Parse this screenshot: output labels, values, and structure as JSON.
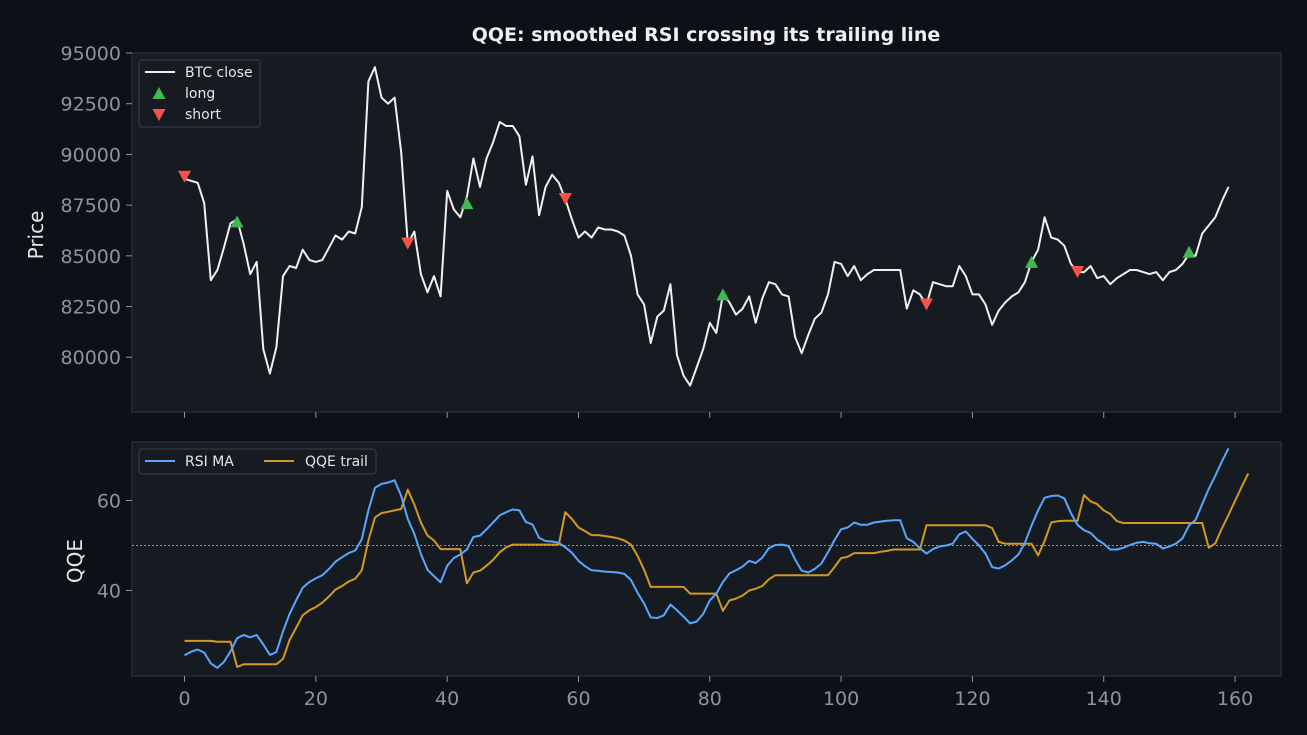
{
  "chart_data": [
    {
      "type": "line",
      "title": "QQE: smoothed RSI crossing its trailing line",
      "xlabel": "",
      "ylabel": "Price",
      "xlim": [
        -8,
        167
      ],
      "ylim": [
        77300,
        95000
      ],
      "yticks": [
        80000,
        82500,
        85000,
        87500,
        90000,
        92500,
        95000
      ],
      "xticks": [
        0,
        20,
        40,
        60,
        80,
        100,
        120,
        140,
        160
      ],
      "legend_position": "top-left",
      "colors": {
        "close": "#f0f0f0",
        "long": "#3fb950",
        "short": "#f85149"
      },
      "series": [
        {
          "name": "BTC close",
          "x_start": 0,
          "values": [
            88800,
            88700,
            88600,
            87600,
            83800,
            84300,
            85400,
            86600,
            86800,
            85600,
            84100,
            84700,
            80400,
            79200,
            80500,
            84000,
            84500,
            84400,
            85300,
            84800,
            84700,
            84800,
            85400,
            86000,
            85800,
            86200,
            86100,
            87400,
            93600,
            94300,
            92800,
            92500,
            92800,
            90100,
            85600,
            86200,
            84100,
            83200,
            84000,
            83000,
            88200,
            87300,
            86900,
            87900,
            89800,
            88400,
            89800,
            90600,
            91600,
            91400,
            91400,
            90900,
            88500,
            89900,
            87000,
            88400,
            89000,
            88600,
            87800,
            86800,
            85900,
            86200,
            85900,
            86400,
            86300,
            86300,
            86200,
            86000,
            85000,
            83100,
            82600,
            80700,
            82000,
            82300,
            83600,
            80100,
            79100,
            78600,
            79500,
            80400,
            81700,
            81200,
            83100,
            82700,
            82100,
            82400,
            83000,
            81700,
            82900,
            83700,
            83600,
            83100,
            83000,
            81000,
            80200,
            81100,
            81900,
            82200,
            83100,
            84700,
            84600,
            84000,
            84500,
            83800,
            84100,
            84300,
            84300,
            84300,
            84300,
            84300,
            82400,
            83300,
            83100,
            82600,
            83700,
            83600,
            83500,
            83500,
            84500,
            84000,
            83100,
            83100,
            82600,
            81600,
            82300,
            82700,
            83000,
            83200,
            83700,
            84700,
            85300,
            86900,
            85900,
            85800,
            85500,
            84600,
            84200,
            84200,
            84500,
            83900,
            84000,
            83600,
            83900,
            84100,
            84300,
            84300,
            84200,
            84100,
            84200,
            83800,
            84200,
            84300,
            84600,
            85100,
            85000,
            86100,
            86500,
            86900,
            87700,
            88400
          ]
        },
        {
          "name": "long",
          "marker": "triangle-up",
          "points": [
            [
              8,
              86700
            ],
            [
              43,
              87600
            ],
            [
              82,
              83100
            ],
            [
              129,
              84700
            ],
            [
              153,
              85200
            ]
          ]
        },
        {
          "name": "short",
          "marker": "triangle-down",
          "points": [
            [
              0,
              88900
            ],
            [
              34,
              85600
            ],
            [
              58,
              87800
            ],
            [
              113,
              82600
            ],
            [
              136,
              84200
            ]
          ]
        }
      ]
    },
    {
      "type": "line",
      "title": "",
      "xlabel": "",
      "ylabel": "QQE",
      "xlim": [
        -8,
        167
      ],
      "ylim": [
        21,
        73
      ],
      "yticks": [
        40,
        60
      ],
      "xticks": [
        0,
        20,
        40,
        60,
        80,
        100,
        120,
        140,
        160
      ],
      "reference_line": 50,
      "legend_position": "top-left",
      "colors": {
        "rsi": "#58a6ff",
        "trail": "#d29922",
        "ref": "#8b949e"
      },
      "series": [
        {
          "name": "RSI MA",
          "x_start": 0,
          "values": [
            25.6,
            26.4,
            26.9,
            26.2,
            23.8,
            22.8,
            24.1,
            26.5,
            29.4,
            30.1,
            29.6,
            30.1,
            28.0,
            25.7,
            26.3,
            30.9,
            34.8,
            37.8,
            40.6,
            41.9,
            42.7,
            43.4,
            44.8,
            46.4,
            47.4,
            48.3,
            48.9,
            51.4,
            57.8,
            62.8,
            63.7,
            64.0,
            64.5,
            61.0,
            55.9,
            52.6,
            48.1,
            44.6,
            43.2,
            41.8,
            45.5,
            47.2,
            48.0,
            49.1,
            51.9,
            52.2,
            53.6,
            55.1,
            56.7,
            57.4,
            58.0,
            57.8,
            55.2,
            54.7,
            51.7,
            51.0,
            50.9,
            50.6,
            49.6,
            48.4,
            46.6,
            45.4,
            44.5,
            44.4,
            44.2,
            44.1,
            44.0,
            43.7,
            42.3,
            39.5,
            37.1,
            34.0,
            33.9,
            34.5,
            36.9,
            35.6,
            34.2,
            32.7,
            33.1,
            34.8,
            37.8,
            39.3,
            41.9,
            43.8,
            44.5,
            45.3,
            46.6,
            46.1,
            47.3,
            49.4,
            50.1,
            50.2,
            49.9,
            46.9,
            44.4,
            44.0,
            44.8,
            46.0,
            48.5,
            51.2,
            53.6,
            54.0,
            55.1,
            54.6,
            54.6,
            55.1,
            55.3,
            55.5,
            55.6,
            55.6,
            51.6,
            50.8,
            49.4,
            48.2,
            49.2,
            49.8,
            50.0,
            50.4,
            52.5,
            53.1,
            51.5,
            50.0,
            48.2,
            45.2,
            44.9,
            45.6,
            46.7,
            48.0,
            50.6,
            54.4,
            57.8,
            60.6,
            61.0,
            61.1,
            60.5,
            57.2,
            54.6,
            53.4,
            52.8,
            51.3,
            50.4,
            49.1,
            49.1,
            49.5,
            50.1,
            50.6,
            50.8,
            50.5,
            50.4,
            49.3,
            49.8,
            50.4,
            51.6,
            54.5,
            55.7,
            59.2,
            62.6,
            65.5,
            68.7,
            71.6
          ]
        },
        {
          "name": "QQE trail",
          "x_start": 0,
          "values": [
            28.8,
            28.8,
            28.8,
            28.8,
            28.8,
            28.6,
            28.6,
            28.6,
            23.0,
            23.6,
            23.6,
            23.6,
            23.6,
            23.6,
            23.6,
            24.8,
            29.0,
            31.7,
            34.5,
            35.6,
            36.3,
            37.3,
            38.7,
            40.2,
            41.0,
            42.0,
            42.6,
            44.5,
            51.1,
            56.2,
            57.2,
            57.5,
            57.8,
            58.1,
            62.4,
            59.1,
            55.1,
            52.2,
            51.1,
            49.2,
            49.2,
            49.2,
            49.2,
            41.6,
            44.0,
            44.4,
            45.5,
            46.8,
            48.5,
            49.6,
            50.2,
            50.2,
            50.2,
            50.2,
            50.2,
            50.2,
            50.2,
            50.2,
            57.4,
            55.9,
            54.0,
            53.2,
            52.3,
            52.3,
            52.1,
            51.9,
            51.6,
            51.1,
            50.2,
            47.7,
            44.6,
            40.8,
            40.8,
            40.8,
            40.8,
            40.8,
            40.8,
            39.3,
            39.3,
            39.3,
            39.3,
            39.3,
            35.5,
            37.8,
            38.2,
            38.9,
            40.0,
            40.4,
            41.0,
            42.5,
            43.4,
            43.4,
            43.4,
            43.4,
            43.4,
            43.4,
            43.4,
            43.4,
            43.4,
            45.2,
            47.2,
            47.5,
            48.3,
            48.3,
            48.3,
            48.3,
            48.6,
            48.8,
            49.1,
            49.1,
            49.1,
            49.1,
            49.1,
            54.5,
            54.5,
            54.5,
            54.5,
            54.5,
            54.5,
            54.5,
            54.5,
            54.5,
            54.5,
            53.9,
            50.8,
            50.4,
            50.4,
            50.4,
            50.4,
            50.4,
            47.8,
            51.0,
            55.1,
            55.4,
            55.5,
            55.5,
            55.5,
            61.2,
            59.8,
            59.2,
            57.8,
            57.0,
            55.4,
            55.0,
            55.0,
            55.0,
            55.0,
            55.0,
            55.0,
            55.0,
            55.0,
            55.0,
            55.0,
            55.0,
            55.0,
            55.0,
            49.5,
            50.5,
            53.8,
            56.8,
            59.9,
            63.0,
            66.0
          ]
        }
      ]
    }
  ]
}
